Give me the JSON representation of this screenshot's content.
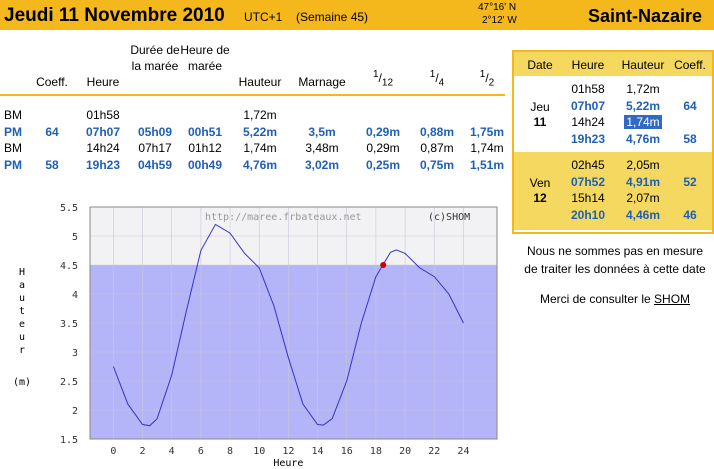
{
  "header": {
    "title": "Jeudi 11 Novembre 2010",
    "timezone": "UTC+1",
    "week": "(Semaine 45)",
    "latitude": "47°16' N",
    "longitude": "2°12' W",
    "place": "Saint-Nazaire"
  },
  "table": {
    "headers": [
      "Coeff.",
      "Heure",
      "Durée de la marée",
      "Heure de marée",
      "Hauteur",
      "Marnage",
      {
        "num": "1",
        "sep": "/",
        "den": "12"
      },
      {
        "num": "1",
        "sep": "/",
        "den": "4"
      },
      {
        "num": "1",
        "sep": "/",
        "den": "2"
      }
    ],
    "rows": [
      {
        "type": "BM",
        "heure": "01h58",
        "hauteur": "1,72m"
      },
      {
        "type": "PM",
        "coeff": "64",
        "heure": "07h07",
        "duree": "05h09",
        "heure_maree": "00h51",
        "hauteur": "5,22m",
        "marnage": "3,5m",
        "douzieme": "0,29m",
        "quart": "0,88m",
        "demi": "1,75m"
      },
      {
        "type": "BM",
        "heure": "14h24",
        "duree": "07h17",
        "heure_maree": "01h12",
        "hauteur": "1,74m",
        "marnage": "3,48m",
        "douzieme": "0,29m",
        "quart": "0,87m",
        "demi": "1,74m"
      },
      {
        "type": "PM",
        "coeff": "58",
        "heure": "19h23",
        "duree": "04h59",
        "heure_maree": "00h49",
        "hauteur": "4,76m",
        "marnage": "3,02m",
        "douzieme": "0,25m",
        "quart": "0,75m",
        "demi": "1,51m"
      }
    ]
  },
  "side_table": {
    "headers": [
      "Date",
      "Heure",
      "Hauteur",
      "Coeff."
    ],
    "days": [
      {
        "day": "Jeu",
        "date": "11",
        "rows": [
          {
            "heure": "01h58",
            "hauteur": "1,72m"
          },
          {
            "heure": "07h07",
            "hauteur": "5,22m",
            "coeff": "64",
            "high": true
          },
          {
            "heure": "14h24",
            "hauteur": "1,74m",
            "selected": true
          },
          {
            "heure": "19h23",
            "hauteur": "4,76m",
            "coeff": "58",
            "high": true
          }
        ]
      },
      {
        "day": "Ven",
        "date": "12",
        "rows": [
          {
            "heure": "02h45",
            "hauteur": "2,05m"
          },
          {
            "heure": "07h52",
            "hauteur": "4,91m",
            "coeff": "52",
            "high": true
          },
          {
            "heure": "15h14",
            "hauteur": "2,07m"
          },
          {
            "heure": "20h10",
            "hauteur": "4,46m",
            "coeff": "46",
            "high": true
          }
        ]
      }
    ]
  },
  "message": {
    "line1": "Nous ne sommes pas en mesure",
    "line2": "de traiter les données à cette date",
    "line3": "Merci de consulter le",
    "link": "SHOM"
  },
  "chart_data": {
    "type": "line",
    "ylabel": "Hauteur",
    "yunit": "(m)",
    "xlabel": "Heure",
    "watermark": "http://maree.frbateaux.net",
    "credit": "(c)SHOM",
    "x": [
      0,
      1,
      2,
      2.5,
      3,
      4,
      5,
      6,
      7,
      8,
      9,
      10,
      11,
      12,
      13,
      14,
      14.4,
      15,
      16,
      17,
      18,
      19,
      19.4,
      20,
      21,
      22,
      23,
      24
    ],
    "series": [
      {
        "name": "Hauteur",
        "color": "#3333cc",
        "values": [
          2.75,
          2.1,
          1.75,
          1.73,
          1.85,
          2.6,
          3.7,
          4.75,
          5.2,
          5.05,
          4.7,
          4.45,
          3.8,
          2.9,
          2.1,
          1.75,
          1.74,
          1.85,
          2.5,
          3.5,
          4.3,
          4.72,
          4.76,
          4.7,
          4.45,
          4.3,
          4.0,
          3.5
        ]
      }
    ],
    "shade_below": 4.5,
    "shade_color": "#b4b4f8",
    "marker": {
      "x": 18.5,
      "y": 4.5,
      "color": "#cc0000"
    },
    "xlim": [
      -1.6,
      26.3
    ],
    "ylim": [
      1.5,
      5.5
    ],
    "xticks": [
      0,
      2,
      4,
      6,
      8,
      10,
      12,
      14,
      16,
      18,
      20,
      22,
      24
    ],
    "yticks": [
      1.5,
      2,
      2.5,
      3,
      3.5,
      4,
      4.5,
      5,
      5.5
    ],
    "grid": true
  }
}
